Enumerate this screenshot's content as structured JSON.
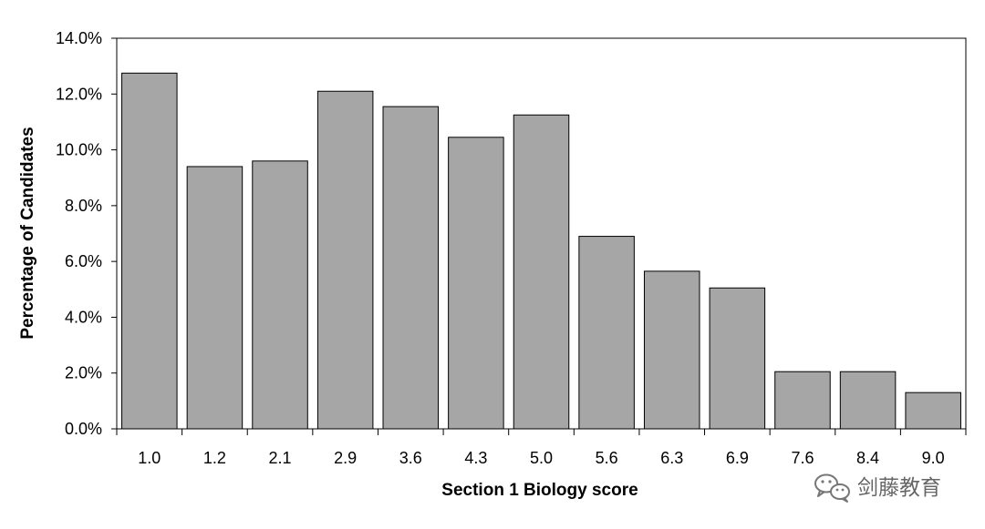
{
  "chart_data": {
    "type": "bar",
    "xlabel": "Section 1 Biology score",
    "ylabel": "Percentage of Candidates",
    "categories": [
      "1.0",
      "1.2",
      "2.1",
      "2.9",
      "3.6",
      "4.3",
      "5.0",
      "5.6",
      "6.3",
      "6.9",
      "7.6",
      "8.4",
      "9.0"
    ],
    "values": [
      12.75,
      9.4,
      9.6,
      12.1,
      11.55,
      10.45,
      11.25,
      6.9,
      5.65,
      5.05,
      2.05,
      2.05,
      1.3
    ],
    "ylim": [
      0,
      14
    ],
    "yticks": [
      0,
      2,
      4,
      6,
      8,
      10,
      12,
      14
    ],
    "ytick_labels": [
      "0.0%",
      "2.0%",
      "4.0%",
      "6.0%",
      "8.0%",
      "10.0%",
      "12.0%",
      "14.0%"
    ],
    "grid": false,
    "legend": "none",
    "bar_color": "#a6a6a6",
    "bar_edge_color": "#000000"
  },
  "watermark": {
    "text": "剑藤教育",
    "icon": "wechat-icon"
  }
}
